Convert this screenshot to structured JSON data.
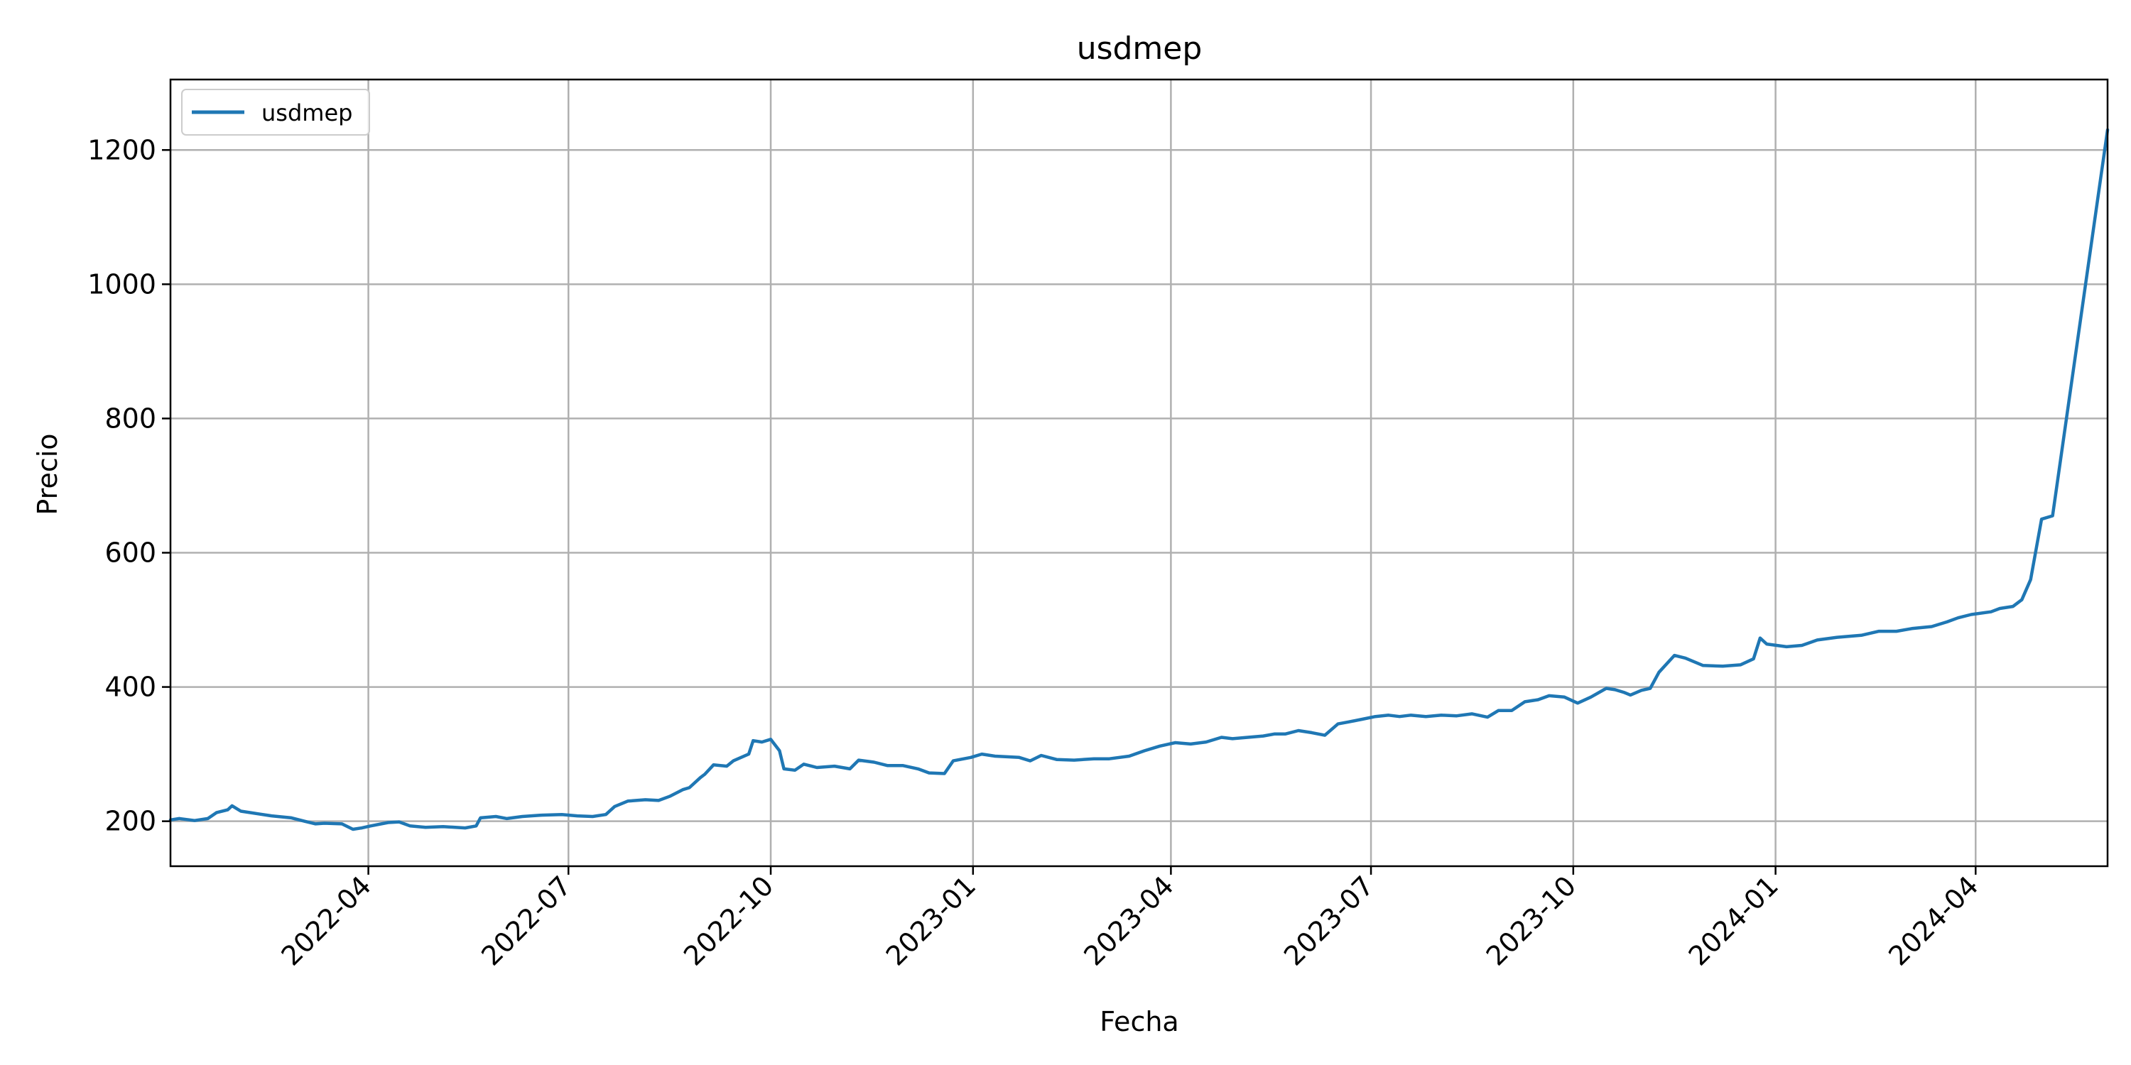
{
  "chart_data": {
    "type": "line",
    "title": "usdmep",
    "xlabel": "Fecha",
    "ylabel": "Precio",
    "xlim": [
      "2022-01-01",
      "2024-05-31"
    ],
    "ylim": [
      133,
      1305
    ],
    "grid": true,
    "legend_position": "top-left",
    "x_ticks": [
      "2022-04-01",
      "2022-07-01",
      "2022-10-01",
      "2023-01-01",
      "2023-04-01",
      "2023-07-01",
      "2023-10-01",
      "2024-01-01",
      "2024-04-01"
    ],
    "x_tick_labels": [
      "2022-04",
      "2022-07",
      "2022-10",
      "2023-01",
      "2023-04",
      "2023-07",
      "2023-10",
      "2024-01",
      "2024-04"
    ],
    "y_ticks": [
      200,
      400,
      600,
      800,
      1000,
      1200
    ],
    "y_tick_labels": [
      "200",
      "400",
      "600",
      "800",
      "1000",
      "1200"
    ],
    "series": [
      {
        "name": "usdmep",
        "color": "#1f77b4",
        "points": [
          [
            "2022-01-01",
            202
          ],
          [
            "2022-01-05",
            204
          ],
          [
            "2022-01-12",
            201
          ],
          [
            "2022-01-18",
            204
          ],
          [
            "2022-01-22",
            213
          ],
          [
            "2022-01-27",
            217
          ],
          [
            "2022-01-29",
            223
          ],
          [
            "2022-02-02",
            215
          ],
          [
            "2022-02-10",
            211
          ],
          [
            "2022-02-16",
            208
          ],
          [
            "2022-02-25",
            205
          ],
          [
            "2022-03-03",
            200
          ],
          [
            "2022-03-08",
            196
          ],
          [
            "2022-03-12",
            197
          ],
          [
            "2022-03-20",
            196
          ],
          [
            "2022-03-25",
            188
          ],
          [
            "2022-03-29",
            190
          ],
          [
            "2022-04-02",
            193
          ],
          [
            "2022-04-10",
            198
          ],
          [
            "2022-04-15",
            199
          ],
          [
            "2022-04-20",
            193
          ],
          [
            "2022-04-27",
            191
          ],
          [
            "2022-05-05",
            192
          ],
          [
            "2022-05-15",
            190
          ],
          [
            "2022-05-20",
            193
          ],
          [
            "2022-05-22",
            205
          ],
          [
            "2022-05-29",
            207
          ],
          [
            "2022-06-03",
            204
          ],
          [
            "2022-06-10",
            207
          ],
          [
            "2022-06-18",
            209
          ],
          [
            "2022-06-28",
            210
          ],
          [
            "2022-07-05",
            208
          ],
          [
            "2022-07-12",
            207
          ],
          [
            "2022-07-18",
            210
          ],
          [
            "2022-07-22",
            222
          ],
          [
            "2022-07-28",
            230
          ],
          [
            "2022-08-05",
            232
          ],
          [
            "2022-08-11",
            231
          ],
          [
            "2022-08-16",
            237
          ],
          [
            "2022-08-22",
            247
          ],
          [
            "2022-08-25",
            250
          ],
          [
            "2022-08-30",
            265
          ],
          [
            "2022-09-01",
            270
          ],
          [
            "2022-09-05",
            284
          ],
          [
            "2022-09-11",
            282
          ],
          [
            "2022-09-14",
            290
          ],
          [
            "2022-09-21",
            300
          ],
          [
            "2022-09-23",
            320
          ],
          [
            "2022-09-27",
            318
          ],
          [
            "2022-10-01",
            322
          ],
          [
            "2022-10-05",
            305
          ],
          [
            "2022-10-07",
            278
          ],
          [
            "2022-10-12",
            276
          ],
          [
            "2022-10-16",
            285
          ],
          [
            "2022-10-22",
            280
          ],
          [
            "2022-10-30",
            282
          ],
          [
            "2022-11-06",
            278
          ],
          [
            "2022-11-10",
            291
          ],
          [
            "2022-11-17",
            288
          ],
          [
            "2022-11-23",
            283
          ],
          [
            "2022-11-30",
            283
          ],
          [
            "2022-12-07",
            278
          ],
          [
            "2022-12-12",
            272
          ],
          [
            "2022-12-19",
            271
          ],
          [
            "2022-12-23",
            290
          ],
          [
            "2022-12-31",
            295
          ],
          [
            "2023-01-05",
            300
          ],
          [
            "2023-01-11",
            297
          ],
          [
            "2023-01-22",
            295
          ],
          [
            "2023-01-27",
            290
          ],
          [
            "2023-02-01",
            298
          ],
          [
            "2023-02-08",
            292
          ],
          [
            "2023-02-16",
            291
          ],
          [
            "2023-02-25",
            293
          ],
          [
            "2023-03-04",
            293
          ],
          [
            "2023-03-13",
            297
          ],
          [
            "2023-03-20",
            305
          ],
          [
            "2023-03-27",
            312
          ],
          [
            "2023-04-03",
            317
          ],
          [
            "2023-04-10",
            315
          ],
          [
            "2023-04-17",
            318
          ],
          [
            "2023-04-24",
            325
          ],
          [
            "2023-04-29",
            323
          ],
          [
            "2023-05-06",
            325
          ],
          [
            "2023-05-13",
            327
          ],
          [
            "2023-05-18",
            330
          ],
          [
            "2023-05-23",
            330
          ],
          [
            "2023-05-29",
            335
          ],
          [
            "2023-06-04",
            332
          ],
          [
            "2023-06-10",
            328
          ],
          [
            "2023-06-16",
            345
          ],
          [
            "2023-06-21",
            348
          ],
          [
            "2023-06-27",
            352
          ],
          [
            "2023-07-03",
            356
          ],
          [
            "2023-07-09",
            358
          ],
          [
            "2023-07-14",
            356
          ],
          [
            "2023-07-19",
            358
          ],
          [
            "2023-07-26",
            356
          ],
          [
            "2023-08-02",
            358
          ],
          [
            "2023-08-09",
            357
          ],
          [
            "2023-08-16",
            360
          ],
          [
            "2023-08-23",
            355
          ],
          [
            "2023-08-28",
            365
          ],
          [
            "2023-09-03",
            365
          ],
          [
            "2023-09-09",
            378
          ],
          [
            "2023-09-15",
            381
          ],
          [
            "2023-09-20",
            387
          ],
          [
            "2023-09-27",
            385
          ],
          [
            "2023-10-03",
            376
          ],
          [
            "2023-10-09",
            385
          ],
          [
            "2023-10-16",
            398
          ],
          [
            "2023-10-20",
            396
          ],
          [
            "2023-10-24",
            392
          ],
          [
            "2023-10-27",
            388
          ],
          [
            "2023-11-01",
            395
          ],
          [
            "2023-11-05",
            398
          ],
          [
            "2023-11-09",
            422
          ],
          [
            "2023-11-16",
            447
          ],
          [
            "2023-11-21",
            443
          ],
          [
            "2023-11-29",
            432
          ],
          [
            "2023-12-08",
            431
          ],
          [
            "2023-12-16",
            433
          ],
          [
            "2023-12-22",
            442
          ],
          [
            "2023-12-25",
            473
          ],
          [
            "2023-12-28",
            464
          ],
          [
            "2024-01-06",
            460
          ],
          [
            "2024-01-13",
            462
          ],
          [
            "2024-01-20",
            470
          ],
          [
            "2024-01-29",
            474
          ],
          [
            "2024-02-09",
            477
          ],
          [
            "2024-02-17",
            483
          ],
          [
            "2024-02-25",
            483
          ],
          [
            "2024-03-03",
            487
          ],
          [
            "2024-03-12",
            490
          ],
          [
            "2024-03-19",
            497
          ],
          [
            "2024-03-24",
            503
          ],
          [
            "2024-03-30",
            508
          ],
          [
            "2024-04-08",
            512
          ],
          [
            "2024-04-12",
            517
          ],
          [
            "2024-04-18",
            520
          ],
          [
            "2024-04-22",
            530
          ],
          [
            "2024-04-26",
            560
          ],
          [
            "2024-05-01",
            650
          ],
          [
            "2024-05-06",
            655
          ],
          [
            "2024-05-31",
            1230
          ]
        ]
      }
    ]
  }
}
